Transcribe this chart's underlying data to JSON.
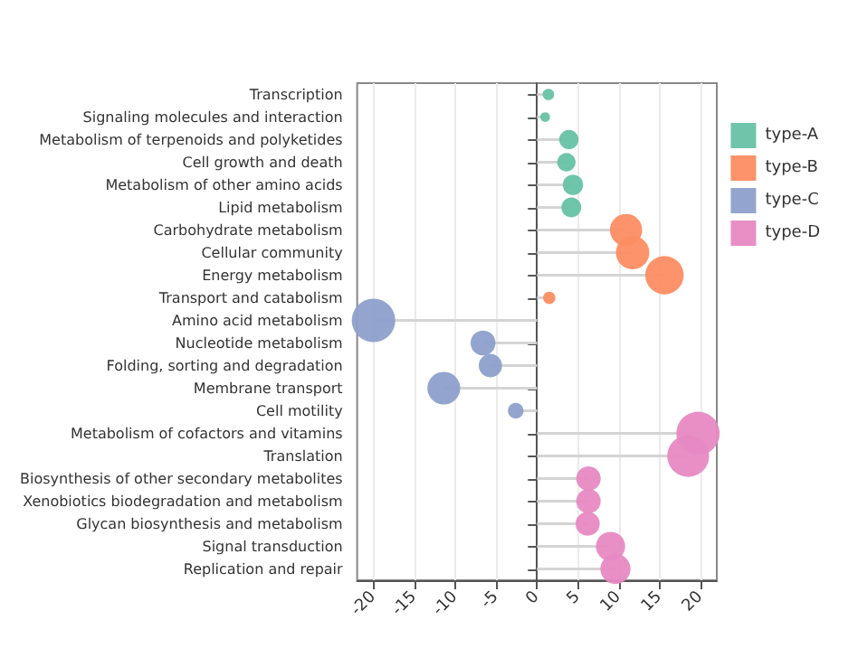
{
  "chart_data": {
    "type": "lollipop",
    "categories": [
      "Transcription",
      "Signaling molecules and interaction",
      "Metabolism of terpenoids and polyketides",
      "Cell growth and death",
      "Metabolism of other amino acids",
      "Lipid metabolism",
      "Carbohydrate metabolism",
      "Cellular community",
      "Energy metabolism",
      "Transport and catabolism",
      "Amino acid metabolism",
      "Nucleotide metabolism",
      "Folding, sorting and degradation",
      "Membrane transport",
      "Cell motility",
      "Metabolism of cofactors and vitamins",
      "Translation",
      "Biosynthesis of other secondary metabolites",
      "Xenobiotics biodegradation and metabolism",
      "Glycan biosynthesis and metabolism",
      "Signal transduction",
      "Replication and repair"
    ],
    "series": [
      {
        "name": "type-A",
        "color": "#66c2a5",
        "values": [
          1.4,
          1.0,
          3.9,
          3.6,
          4.4,
          4.2,
          null,
          null,
          null,
          null,
          null,
          null,
          null,
          null,
          null,
          null,
          null,
          null,
          null,
          null,
          null,
          null
        ],
        "sizes": [
          0.07,
          0.05,
          0.2,
          0.18,
          0.22,
          0.21,
          null,
          null,
          null,
          null,
          null,
          null,
          null,
          null,
          null,
          null,
          null,
          null,
          null,
          null,
          null,
          null
        ]
      },
      {
        "name": "type-B",
        "color": "#fc8d62",
        "values": [
          null,
          null,
          null,
          null,
          null,
          null,
          10.9,
          11.7,
          15.6,
          1.5,
          null,
          null,
          null,
          null,
          null,
          null,
          null,
          null,
          null,
          null,
          null,
          null
        ],
        "sizes": [
          null,
          null,
          null,
          null,
          null,
          null,
          0.55,
          0.59,
          0.78,
          0.08,
          null,
          null,
          null,
          null,
          null,
          null,
          null,
          null,
          null,
          null,
          null,
          null
        ]
      },
      {
        "name": "type-C",
        "color": "#8da0cb",
        "values": [
          null,
          null,
          null,
          null,
          null,
          null,
          null,
          null,
          null,
          null,
          -20,
          -6.6,
          -5.7,
          -11.4,
          -2.6,
          null,
          null,
          null,
          null,
          null,
          null,
          null
        ],
        "sizes": [
          null,
          null,
          null,
          null,
          null,
          null,
          null,
          null,
          null,
          null,
          1,
          0.33,
          0.29,
          0.57,
          0.13,
          null,
          null,
          null,
          null,
          null,
          null,
          null
        ]
      },
      {
        "name": "type-D",
        "color": "#e78ac3",
        "values": [
          null,
          null,
          null,
          null,
          null,
          null,
          null,
          null,
          null,
          null,
          null,
          null,
          null,
          null,
          null,
          19.7,
          18.5,
          6.3,
          6.3,
          6.2,
          9.0,
          9.6
        ],
        "sizes": [
          null,
          null,
          null,
          null,
          null,
          null,
          null,
          null,
          null,
          null,
          null,
          null,
          null,
          null,
          null,
          0.99,
          0.93,
          0.32,
          0.32,
          0.31,
          0.45,
          0.48
        ]
      }
    ],
    "orientation": "horizontal",
    "xlim": [
      -22,
      22
    ],
    "xticks": [
      -20,
      -15,
      -10,
      -5,
      0,
      5,
      10,
      15,
      20
    ],
    "grid": "x",
    "legend": "right",
    "marker": "circle"
  }
}
